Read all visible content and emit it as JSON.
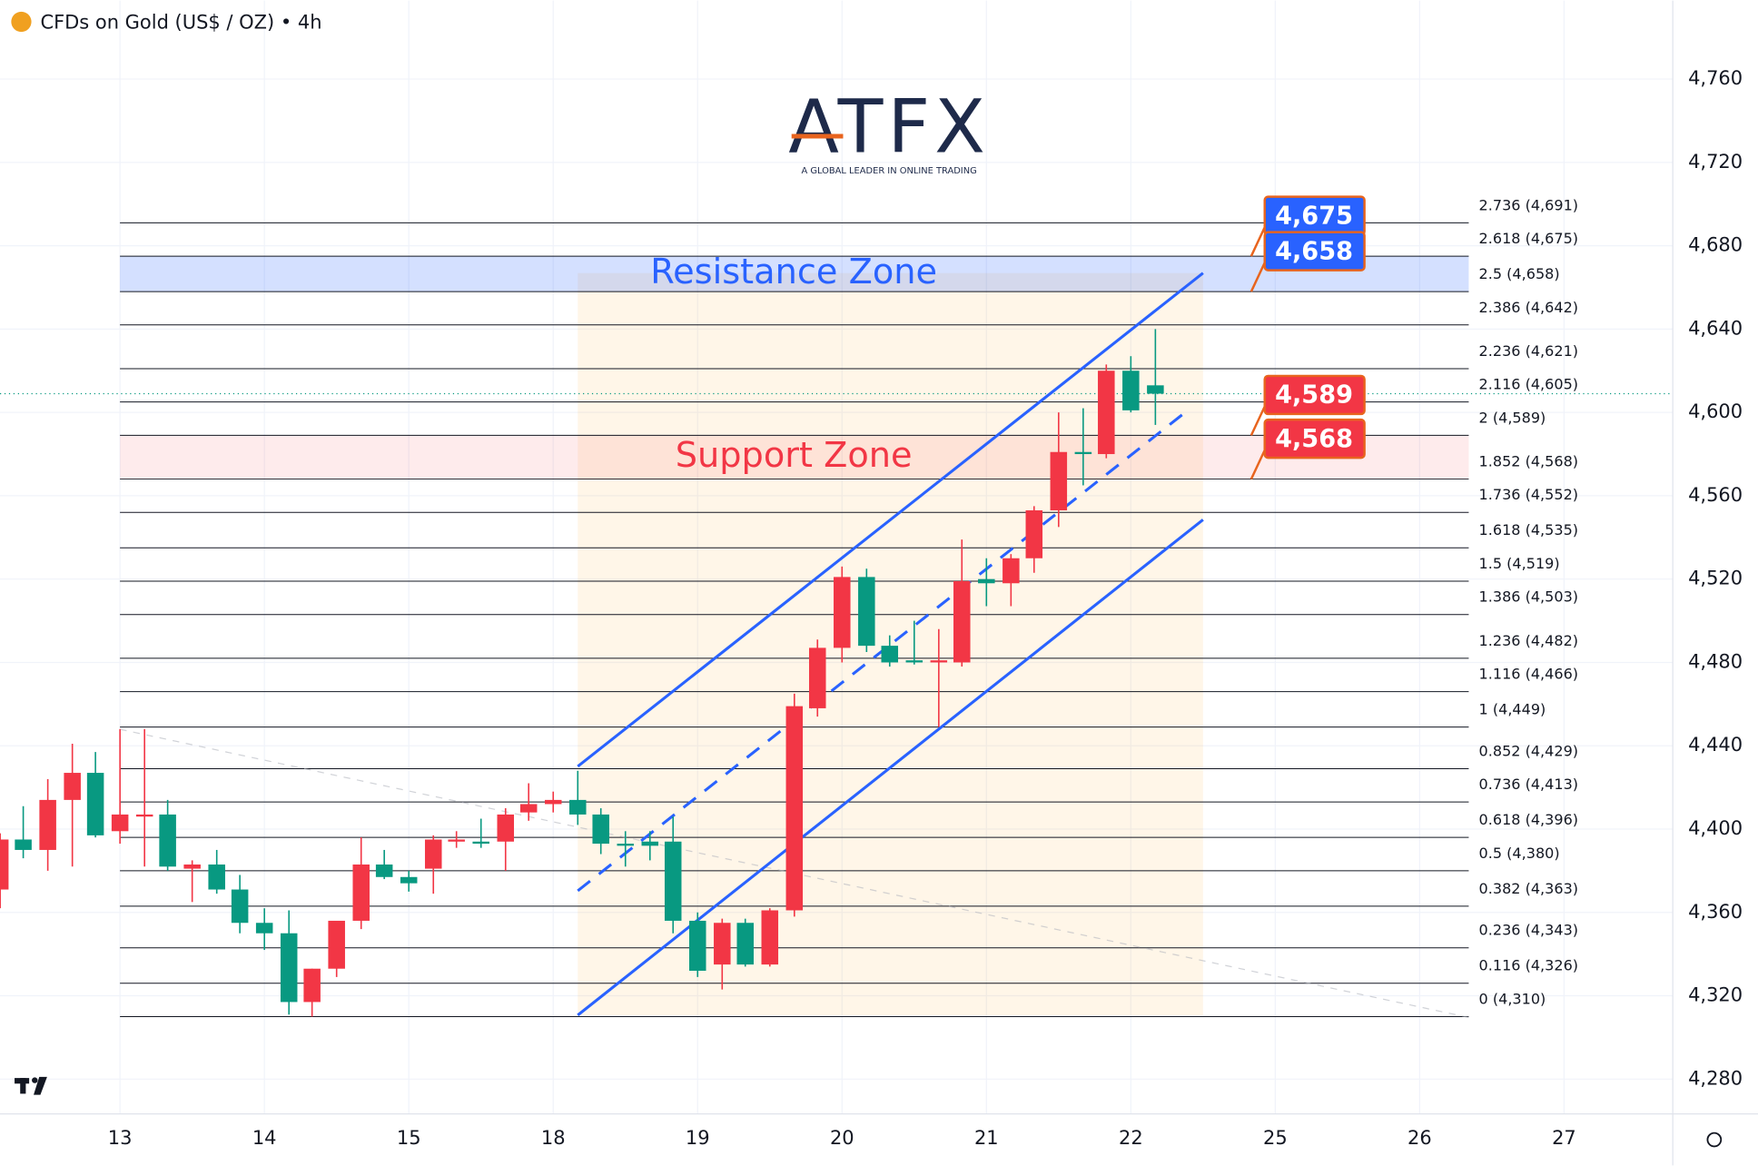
{
  "chart_data": {
    "type": "candlestick",
    "title": "CFDs on Gold (US$ / OZ) • 4h",
    "watermark": {
      "text": "ATFX",
      "tagline": "A GLOBAL LEADER IN ONLINE TRADING"
    },
    "up_color": "#f23645",
    "down_color": "#089981",
    "x": [
      -0.83,
      -0.67,
      -0.5,
      -0.33,
      -0.17,
      0,
      0.17,
      0.33,
      0.5,
      0.67,
      0.83,
      1,
      1.17,
      1.33,
      1.5,
      1.67,
      1.83,
      2,
      2.17,
      2.33,
      2.5,
      2.67,
      2.83,
      3,
      3.17,
      3.33,
      3.5,
      3.67,
      3.83,
      4,
      4.17,
      4.33,
      4.5,
      4.67,
      4.83,
      5,
      5.17,
      5.33,
      5.5,
      5.67,
      5.83,
      6,
      6.17,
      6.33,
      6.5,
      6.67,
      6.83,
      7,
      7.17
    ],
    "open": [
      4371,
      4395,
      4390,
      4414,
      4427,
      4399,
      4406,
      4407,
      4381,
      4383,
      4371,
      4355,
      4350,
      4317,
      4333,
      4356,
      4383,
      4377,
      4381,
      4394,
      4394,
      4394,
      4408,
      4412,
      4414,
      4407,
      4393,
      4394,
      4394,
      4356,
      4335,
      4355,
      4335,
      4361,
      4458,
      4487,
      4521,
      4488,
      4481,
      4480,
      4480,
      4520,
      4518,
      4530,
      4553,
      4581,
      4580,
      4620,
      4613
    ],
    "high": [
      4398,
      4411,
      4424,
      4441,
      4437,
      4448,
      4448,
      4414,
      4385,
      4390,
      4378,
      4362,
      4361,
      4333,
      4355,
      4396,
      4390,
      4380,
      4397,
      4399,
      4405,
      4410,
      4422,
      4418,
      4428,
      4410,
      4399,
      4399,
      4406,
      4360,
      4357,
      4357,
      4362,
      4465,
      4491,
      4526,
      4525,
      4493,
      4500,
      4496,
      4539,
      4530,
      4532,
      4555,
      4600,
      4602,
      4623,
      4627,
      4640
    ],
    "low": [
      4362,
      4386,
      4380,
      4382,
      4396,
      4393,
      4382,
      4380,
      4365,
      4369,
      4350,
      4342,
      4311,
      4310,
      4329,
      4352,
      4376,
      4370,
      4369,
      4391,
      4391,
      4380,
      4404,
      4408,
      4402,
      4388,
      4382,
      4385,
      4350,
      4329,
      4323,
      4334,
      4334,
      4358,
      4454,
      4480,
      4485,
      4478,
      4479,
      4449,
      4478,
      4507,
      4507,
      4523,
      4545,
      4565,
      4578,
      4600,
      4594
    ],
    "close": [
      4395,
      4390,
      4414,
      4427,
      4397,
      4407,
      4407,
      4382,
      4383,
      4371,
      4355,
      4350,
      4317,
      4333,
      4356,
      4383,
      4377,
      4374,
      4395,
      4395,
      4393,
      4407,
      4412,
      4414,
      4407,
      4393,
      4392,
      4392,
      4356,
      4332,
      4355,
      4335,
      4361,
      4459,
      4487,
      4521,
      4488,
      4480,
      4480,
      4481,
      4519,
      4518,
      4530,
      4553,
      4581,
      4580,
      4620,
      4601,
      4609
    ],
    "xlim": [
      -0.831,
      10.753
    ],
    "xticks": [
      {
        "value": 0,
        "label": "13"
      },
      {
        "value": 1,
        "label": "14"
      },
      {
        "value": 2,
        "label": "15"
      },
      {
        "value": 3,
        "label": "18"
      },
      {
        "value": 4,
        "label": "19"
      },
      {
        "value": 5,
        "label": "20"
      },
      {
        "value": 6,
        "label": "21"
      },
      {
        "value": 7,
        "label": "22"
      },
      {
        "value": 8,
        "label": "25"
      },
      {
        "value": 9,
        "label": "26"
      },
      {
        "value": 10,
        "label": "27"
      }
    ],
    "ylim": [
      4263.3,
      4797.7
    ],
    "yticks": [
      {
        "value": 4280,
        "label": "4,280"
      },
      {
        "value": 4320,
        "label": "4,320"
      },
      {
        "value": 4360,
        "label": "4,360"
      },
      {
        "value": 4400,
        "label": "4,400"
      },
      {
        "value": 4440,
        "label": "4,440"
      },
      {
        "value": 4480,
        "label": "4,480"
      },
      {
        "value": 4520,
        "label": "4,520"
      },
      {
        "value": 4560,
        "label": "4,560"
      },
      {
        "value": 4600,
        "label": "4,600"
      },
      {
        "value": 4640,
        "label": "4,640"
      },
      {
        "value": 4680,
        "label": "4,680"
      },
      {
        "value": 4720,
        "label": "4,720"
      },
      {
        "value": 4760,
        "label": "4,760"
      }
    ],
    "fib_levels": [
      {
        "value": 4691,
        "label": "2.736 (4,691)"
      },
      {
        "value": 4675,
        "label": "2.618 (4,675)"
      },
      {
        "value": 4658,
        "label": "2.5 (4,658)"
      },
      {
        "value": 4642,
        "label": "2.386 (4,642)"
      },
      {
        "value": 4621,
        "label": "2.236 (4,621)"
      },
      {
        "value": 4605,
        "label": "2.116 (4,605)"
      },
      {
        "value": 4589,
        "label": "2 (4,589)"
      },
      {
        "value": 4568,
        "label": "1.852 (4,568)"
      },
      {
        "value": 4552,
        "label": "1.736 (4,552)"
      },
      {
        "value": 4535,
        "label": "1.618 (4,535)"
      },
      {
        "value": 4519,
        "label": "1.5 (4,519)"
      },
      {
        "value": 4503,
        "label": "1.386 (4,503)"
      },
      {
        "value": 4482,
        "label": "1.236 (4,482)"
      },
      {
        "value": 4466,
        "label": "1.116 (4,466)"
      },
      {
        "value": 4449,
        "label": "1 (4,449)"
      },
      {
        "value": 4429,
        "label": "0.852 (4,429)"
      },
      {
        "value": 4413,
        "label": "0.736 (4,413)"
      },
      {
        "value": 4396,
        "label": "0.618 (4,396)"
      },
      {
        "value": 4380,
        "label": "0.5 (4,380)"
      },
      {
        "value": 4363,
        "label": "0.382 (4,363)"
      },
      {
        "value": 4343,
        "label": "0.236 (4,343)"
      },
      {
        "value": 4326,
        "label": "0.116 (4,326)"
      },
      {
        "value": 4310,
        "label": "0 (4,310)"
      }
    ],
    "zones": [
      {
        "name": "Resistance Zone",
        "low": 4658,
        "high": 4675,
        "low_label": "4,658",
        "high_label": "4,675",
        "color": "#2962ff"
      },
      {
        "name": "Support Zone",
        "low": 4568,
        "high": 4589,
        "low_label": "4,568",
        "high_label": "4,589",
        "color": "#f23645"
      }
    ],
    "channel": {
      "x": [
        3.17,
        7.5
      ],
      "upper": [
        4430.1,
        4666.9
      ],
      "lower": [
        4310.7,
        4548.5
      ],
      "mid_x": [
        3.17,
        7.4
      ],
      "mid": [
        4370.4,
        4601.3
      ]
    },
    "trend_line": {
      "x": [
        0,
        9.34
      ],
      "y": [
        4447.9,
        4309.6
      ]
    }
  }
}
